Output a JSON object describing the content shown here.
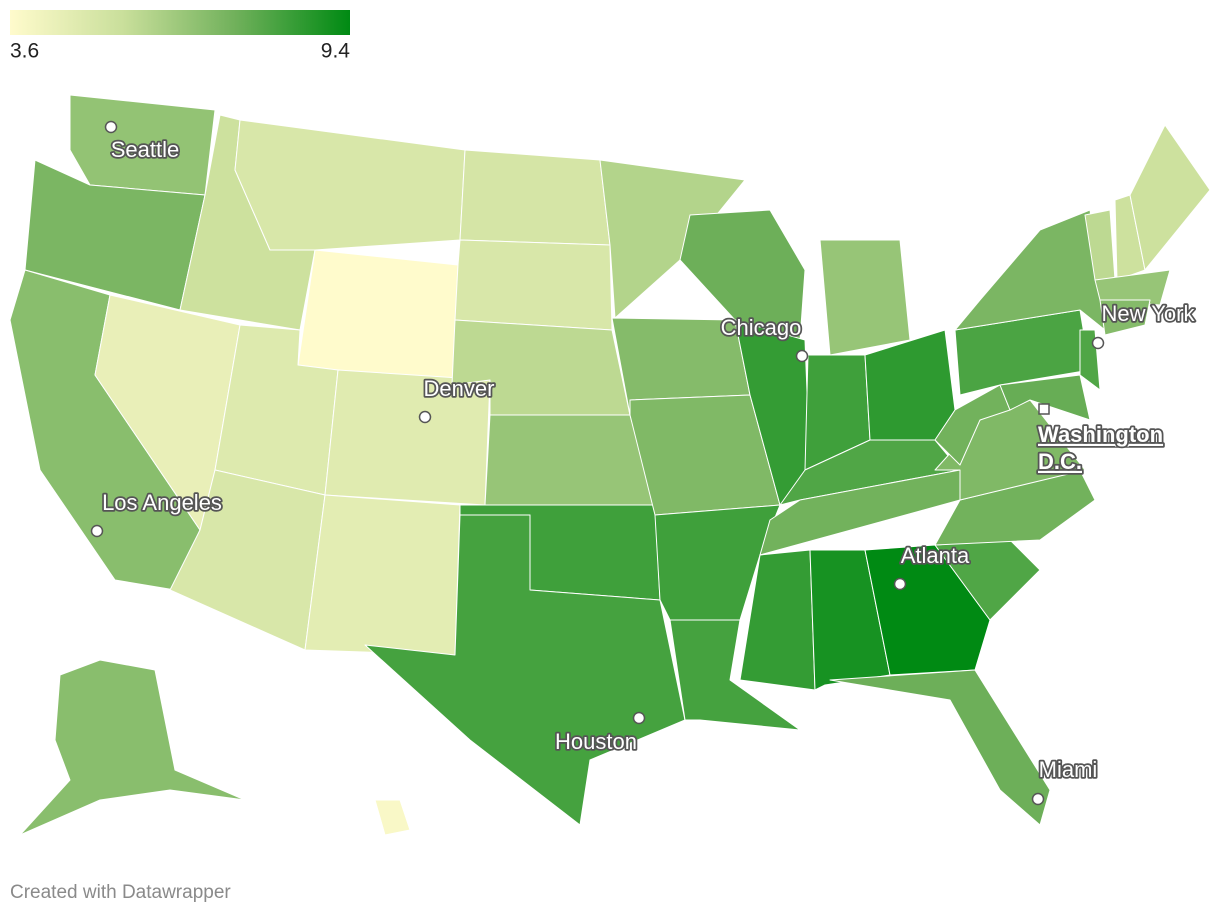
{
  "map_data": {
    "legend": {
      "min": 3.6,
      "max": 9.4,
      "colors": [
        "#fffbcc",
        "#c9df9b",
        "#6fb05a",
        "#008a13"
      ]
    },
    "region_values": [
      6.7,
      7.2,
      6.9,
      4.4,
      5.4,
      5.0,
      3.6,
      4.8,
      4.7,
      5.0,
      4.6,
      5.1,
      5.0,
      5.8,
      6.6,
      8.3,
      8.2,
      6.0,
      7.0,
      7.1,
      8.3,
      8.2,
      7.5,
      8.5,
      6.6,
      8.3,
      8.6,
      8.0,
      7.4,
      8.5,
      9.0,
      9.4,
      7.5,
      8.0,
      7.4,
      7.1,
      7.4,
      8.1,
      7.2,
      8.0,
      7.6,
      5.8,
      5.4,
      5.4,
      6.6,
      7.0,
      6.9,
      3.8
    ],
    "cities": [
      {
        "label": "Seattle"
      },
      {
        "label": "Los Angeles"
      },
      {
        "label": "Denver"
      },
      {
        "label": "Chicago"
      },
      {
        "label": "Houston"
      },
      {
        "label": "Atlanta"
      },
      {
        "label": "Miami"
      },
      {
        "label": "New York"
      }
    ],
    "capital": {
      "label_lines": [
        "Washington",
        "D.C."
      ]
    },
    "footer": "Created with Datawrapper"
  }
}
